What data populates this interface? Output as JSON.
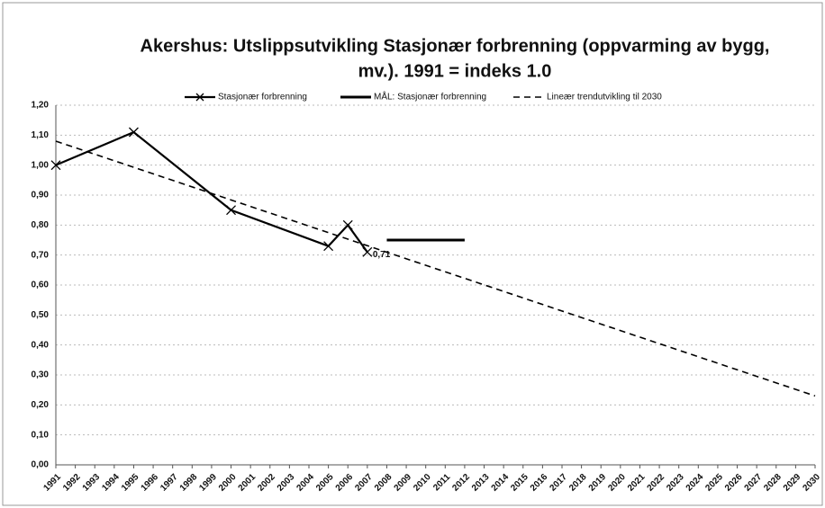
{
  "chart_data": {
    "type": "line",
    "title": [
      "Akershus: Utslippsutvikling Stasjonær forbrenning (oppvarming av bygg,",
      "mv.). 1991 = indeks  1.0"
    ],
    "xlim": [
      1991,
      2030
    ],
    "xticks": [
      1991,
      1992,
      1993,
      1994,
      1995,
      1996,
      1997,
      1998,
      1999,
      2000,
      2001,
      2002,
      2003,
      2004,
      2005,
      2006,
      2007,
      2008,
      2009,
      2010,
      2011,
      2012,
      2013,
      2014,
      2015,
      2016,
      2017,
      2018,
      2019,
      2020,
      2021,
      2022,
      2023,
      2024,
      2025,
      2026,
      2027,
      2028,
      2029,
      2030
    ],
    "ylim": [
      0,
      1.2
    ],
    "yticks": [
      {
        "value": 0,
        "label": "0,00"
      },
      {
        "value": 0.1,
        "label": "0,10"
      },
      {
        "value": 0.2,
        "label": "0,20"
      },
      {
        "value": 0.3,
        "label": "0,30"
      },
      {
        "value": 0.4,
        "label": "0,40"
      },
      {
        "value": 0.5,
        "label": "0,50"
      },
      {
        "value": 0.6,
        "label": "0,60"
      },
      {
        "value": 0.7,
        "label": "0,70"
      },
      {
        "value": 0.8,
        "label": "0,80"
      },
      {
        "value": 0.9,
        "label": "0,90"
      },
      {
        "value": 1.0,
        "label": "1,00"
      },
      {
        "value": 1.1,
        "label": "1,10"
      },
      {
        "value": 1.2,
        "label": "1,20"
      }
    ],
    "grid": true,
    "legend": "top",
    "series": [
      {
        "name": "Stasjonær forbrenning",
        "color": "#000000",
        "style": "marker",
        "x": [
          1991,
          1995,
          2000,
          2005,
          2006,
          2007
        ],
        "values": [
          1.0,
          1.11,
          0.85,
          0.73,
          0.8,
          0.71
        ],
        "value_labels": [
          null,
          null,
          null,
          null,
          null,
          "0,71"
        ]
      },
      {
        "name": "MÅL: Stasjonær forbrenning",
        "color": "#000000",
        "style": "thick",
        "x": [
          2008,
          2012
        ],
        "values": [
          0.75,
          0.75
        ]
      },
      {
        "name": "Lineær trendutvikling til 2030",
        "color": "#000000",
        "style": "dashed",
        "x": [
          1991,
          2030
        ],
        "values": [
          1.08,
          0.23
        ]
      }
    ]
  }
}
